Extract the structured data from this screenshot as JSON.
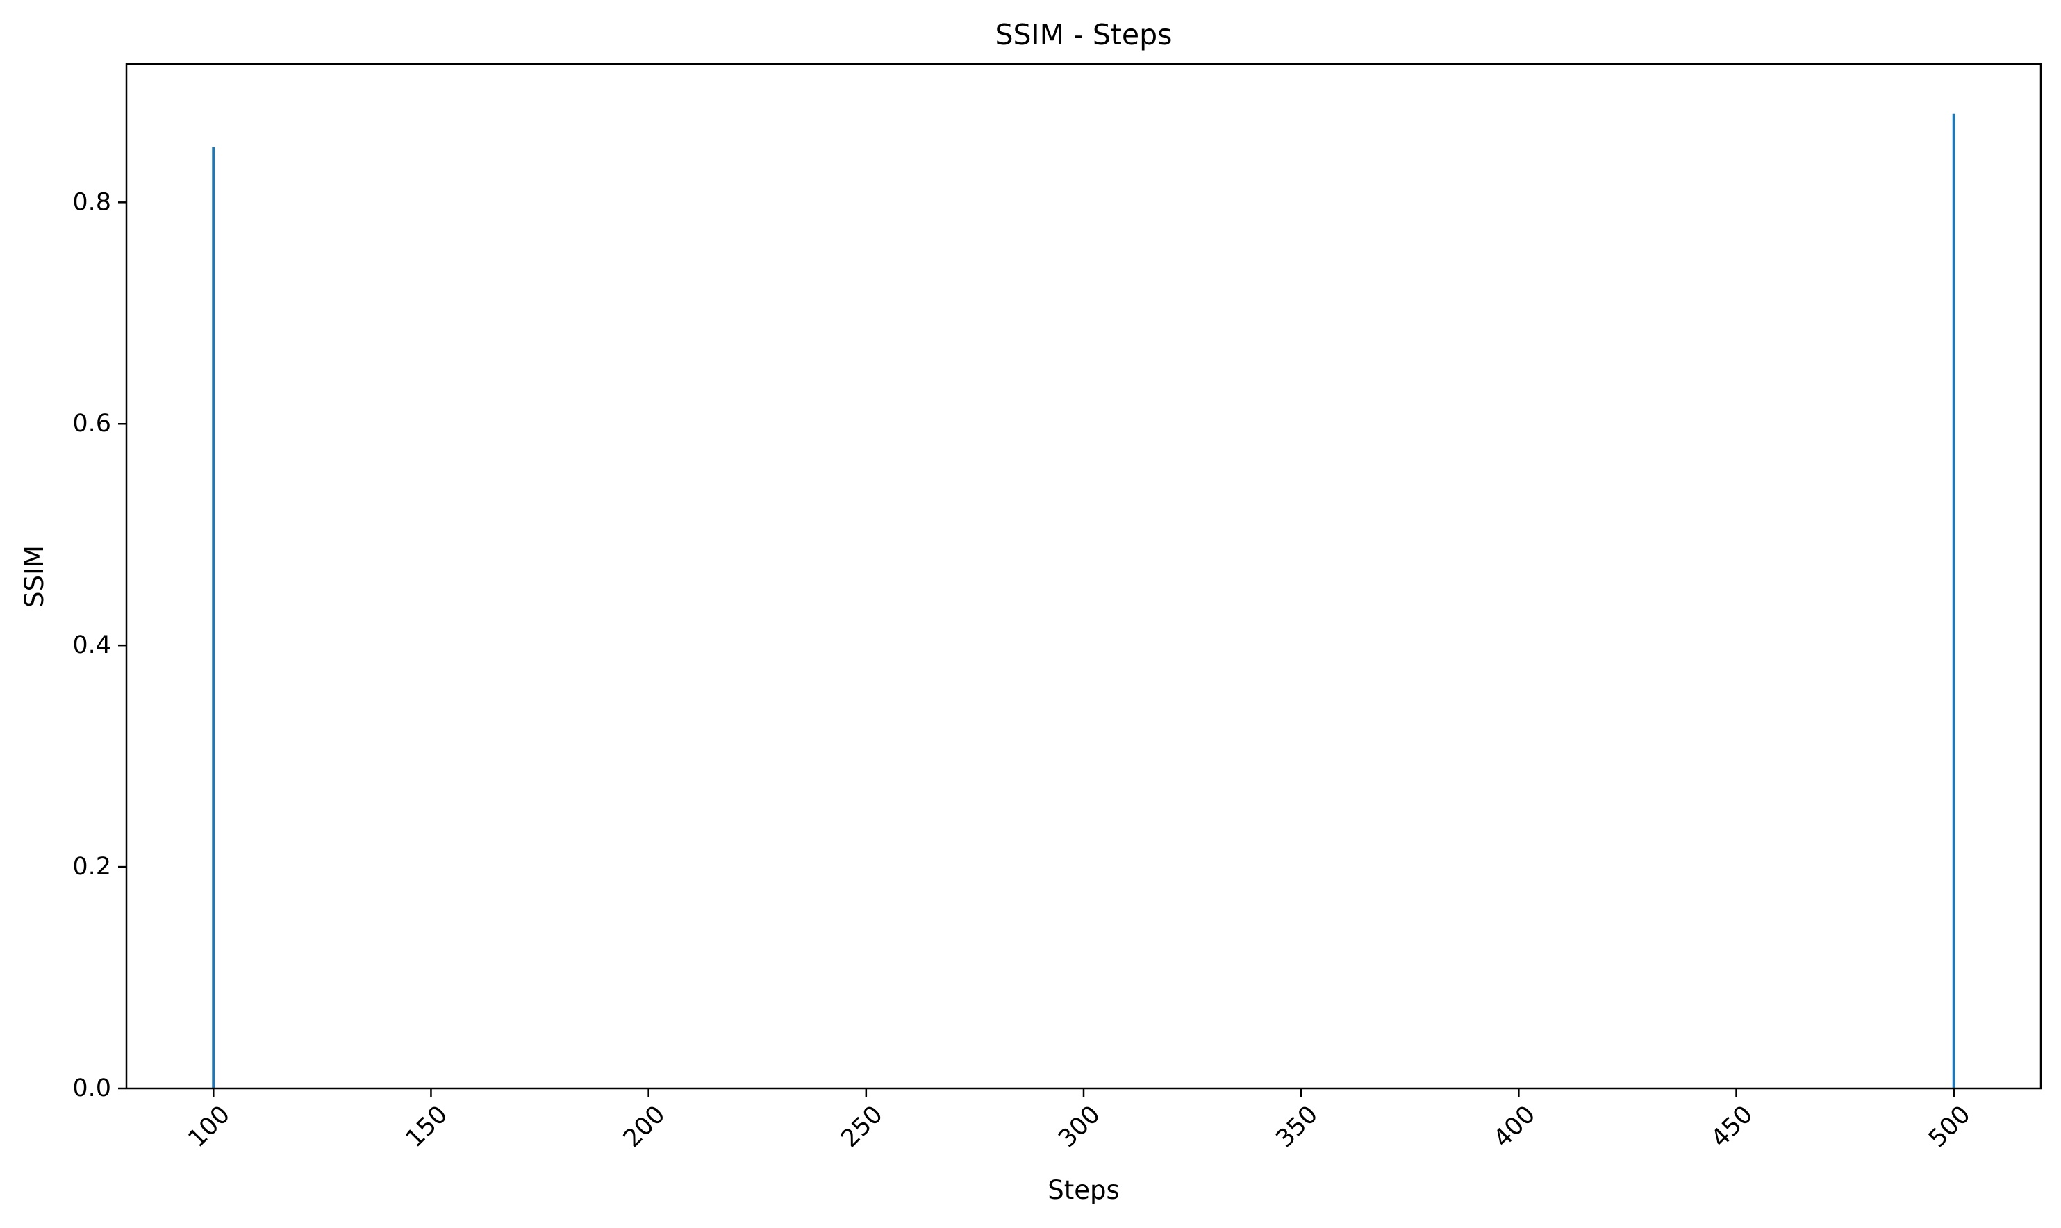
{
  "chart_data": {
    "type": "bar",
    "title": "SSIM - Steps",
    "xlabel": "Steps",
    "ylabel": "SSIM",
    "x": [
      100,
      500
    ],
    "values": [
      0.85,
      0.88
    ],
    "xlim": [
      80,
      520
    ],
    "ylim": [
      0,
      0.925
    ],
    "xticks": [
      100,
      150,
      200,
      250,
      300,
      350,
      400,
      450,
      500
    ],
    "xtick_labels": [
      "100",
      "150",
      "200",
      "250",
      "300",
      "350",
      "400",
      "450",
      "500"
    ],
    "yticks": [
      0.0,
      0.2,
      0.4,
      0.6,
      0.8
    ],
    "ytick_labels": [
      "0.0",
      "0.2",
      "0.4",
      "0.6",
      "0.8"
    ],
    "xtick_rotation_deg": 45,
    "grid": false,
    "legend": "none",
    "color": "#1f77b4"
  }
}
